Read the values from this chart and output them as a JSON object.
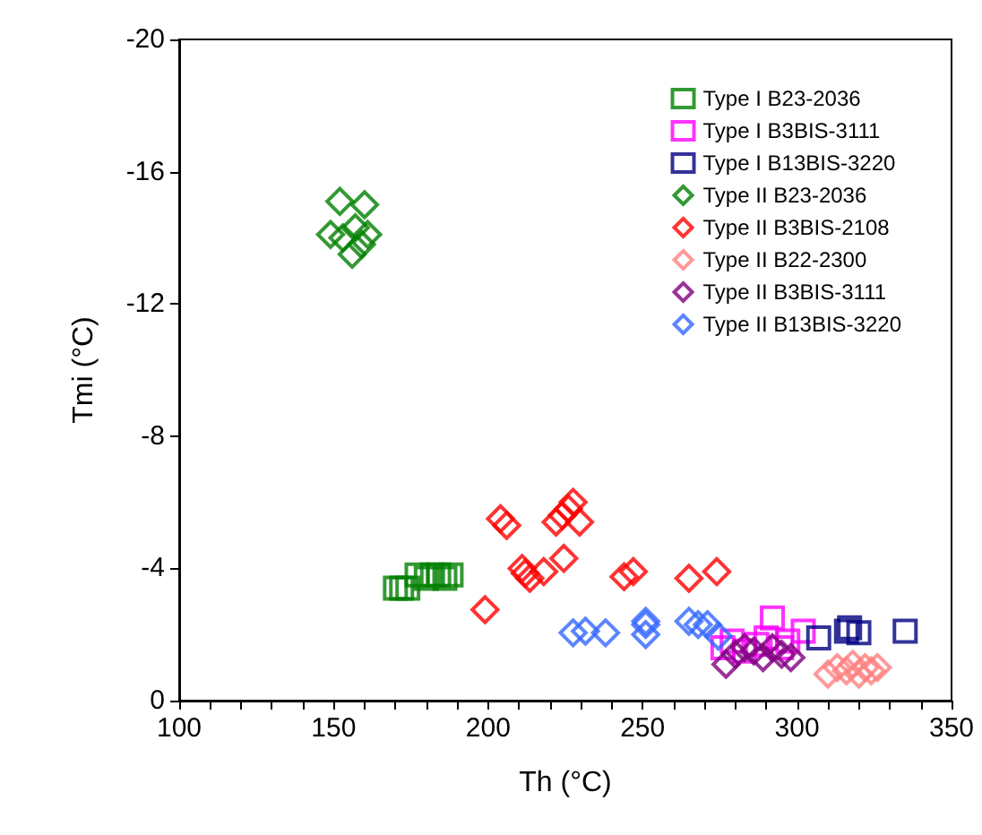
{
  "chart_data": {
    "type": "scatter",
    "xlabel": "Th (°C)",
    "ylabel": "Tmi (°C)",
    "xlim": [
      100,
      350
    ],
    "xticks": [
      100,
      {
        "value": 110,
        "label": null
      },
      {
        "value": 120,
        "label": null
      },
      {
        "value": 130,
        "label": null
      },
      {
        "value": 140,
        "label": null
      },
      150,
      {
        "value": 160,
        "label": null
      },
      {
        "value": 170,
        "label": null
      },
      {
        "value": 180,
        "label": null
      },
      {
        "value": 190,
        "label": null
      },
      200,
      {
        "value": 210,
        "label": null
      },
      {
        "value": 220,
        "label": null
      },
      {
        "value": 230,
        "label": null
      },
      {
        "value": 240,
        "label": null
      },
      250,
      {
        "value": 260,
        "label": null
      },
      {
        "value": 270,
        "label": null
      },
      {
        "value": 280,
        "label": null
      },
      {
        "value": 290,
        "label": null
      },
      300,
      {
        "value": 310,
        "label": null
      },
      {
        "value": 320,
        "label": null
      },
      {
        "value": 330,
        "label": null
      },
      {
        "value": 340,
        "label": null
      },
      350
    ],
    "ylim": [
      0,
      -20
    ],
    "yticks": [
      0,
      -4,
      -8,
      -12,
      -16,
      -20
    ],
    "grid": false,
    "legend": "top right",
    "series": [
      {
        "name": "Type I B23-2036",
        "color": "#008000",
        "marker": "square",
        "x": [
          170,
          172,
          174,
          177,
          180,
          182,
          184,
          186,
          188
        ],
        "values": [
          -3.4,
          -3.4,
          -3.4,
          -3.8,
          -3.7,
          -3.8,
          -3.8,
          -3.7,
          -3.8
        ]
      },
      {
        "name": "Type I B3BIS-3111",
        "color": "#ff00ff",
        "marker": "square",
        "x": [
          276,
          279,
          283,
          287,
          290,
          292,
          295,
          297,
          302
        ],
        "values": [
          -1.6,
          -1.8,
          -1.5,
          -1.7,
          -1.9,
          -2.5,
          -1.6,
          -1.8,
          -2.1
        ]
      },
      {
        "name": "Type I B13BIS-3220",
        "color": "#000080",
        "marker": "square",
        "x": [
          307,
          316,
          317,
          320,
          335
        ],
        "values": [
          -1.9,
          -2.1,
          -2.2,
          -2.05,
          -2.1
        ]
      },
      {
        "name": "Type II B23-2036",
        "color": "#008000",
        "marker": "diamond",
        "x": [
          152,
          160,
          149,
          153,
          156,
          161,
          159,
          157
        ],
        "values": [
          -15.1,
          -15.0,
          -14.1,
          -14.0,
          -13.5,
          -14.1,
          -13.8,
          -14.3
        ]
      },
      {
        "name": "Type II B3BIS-2108",
        "color": "#ff0000",
        "marker": "diamond",
        "x": [
          204,
          206,
          224,
          227.5,
          222,
          229.6,
          226,
          212,
          213.5,
          218,
          224.5,
          199,
          244,
          247,
          265,
          274,
          211
        ],
        "values": [
          -5.5,
          -5.3,
          -5.6,
          -6.0,
          -5.4,
          -5.4,
          -5.8,
          -3.85,
          -3.7,
          -3.9,
          -4.3,
          -2.75,
          -3.75,
          -3.9,
          -3.7,
          -3.9,
          -4.0
        ]
      },
      {
        "name": "Type II B22-2300",
        "color": "#ff8080",
        "marker": "diamond",
        "x": [
          310,
          313,
          316,
          318,
          320,
          322,
          324,
          326
        ],
        "values": [
          -0.8,
          -1.0,
          -0.9,
          -1.1,
          -0.8,
          -1.0,
          -0.9,
          -1.0
        ]
      },
      {
        "name": "Type II B3BIS-3111",
        "color": "#800080",
        "marker": "diamond",
        "x": [
          277,
          280,
          283,
          286,
          289,
          292,
          295,
          298
        ],
        "values": [
          -1.1,
          -1.4,
          -1.6,
          -1.5,
          -1.3,
          -1.6,
          -1.4,
          -1.3
        ]
      },
      {
        "name": "Type II B13BIS-3220",
        "color": "#3366ff",
        "marker": "diamond",
        "x": [
          227.5,
          231.5,
          238,
          251,
          251,
          251,
          265,
          268,
          271,
          274.5
        ],
        "values": [
          -2.05,
          -2.1,
          -2.05,
          -2.4,
          -2.0,
          -2.3,
          -2.4,
          -2.3,
          -2.3,
          -1.95
        ]
      }
    ]
  }
}
